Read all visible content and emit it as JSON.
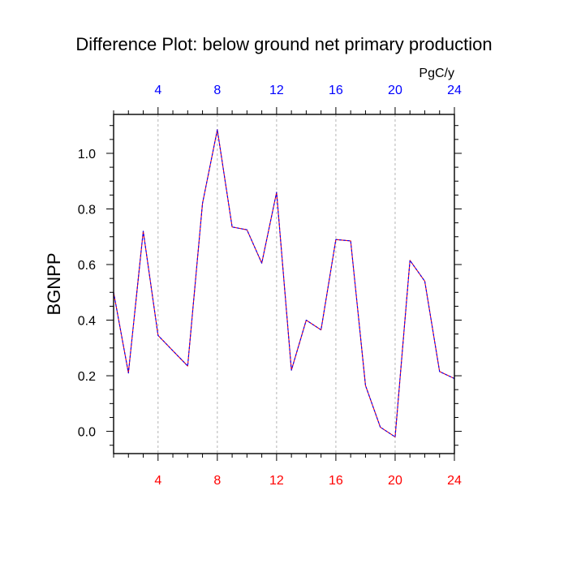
{
  "chart_data": {
    "type": "line",
    "title": "Difference Plot: below ground net primary production",
    "ylabel": "BGNPP",
    "units": "PgC/y",
    "xlim": [
      1,
      24
    ],
    "ylim": [
      -0.08,
      1.14
    ],
    "x_ticks": [
      4,
      8,
      12,
      16,
      20,
      24
    ],
    "x_tick_labels": [
      "4",
      "8",
      "12",
      "16",
      "20",
      "24"
    ],
    "y_ticks": [
      0.0,
      0.2,
      0.4,
      0.6,
      0.8,
      1.0
    ],
    "y_tick_labels": [
      "0.0",
      "0.2",
      "0.4",
      "0.6",
      "0.8",
      "1.0"
    ],
    "grid": "vertical dashed at major x ticks",
    "colors": {
      "top_tick_labels": "#0000ff",
      "bottom_tick_labels": "#ff0000",
      "line_dash": "#0000ff",
      "line_base": "#ff0000"
    },
    "series": [
      {
        "x": [
          1,
          2,
          3,
          4,
          5,
          6,
          7,
          8,
          9,
          10,
          11,
          12,
          13,
          14,
          15,
          16,
          17,
          18,
          19,
          20,
          21,
          22,
          23,
          24
        ],
        "values": [
          0.5,
          0.21,
          0.72,
          0.345,
          0.29,
          0.235,
          0.82,
          1.085,
          0.735,
          0.725,
          0.605,
          0.86,
          0.22,
          0.4,
          0.365,
          0.69,
          0.685,
          0.165,
          0.015,
          -0.02,
          0.615,
          0.54,
          0.215,
          0.19
        ]
      }
    ]
  }
}
